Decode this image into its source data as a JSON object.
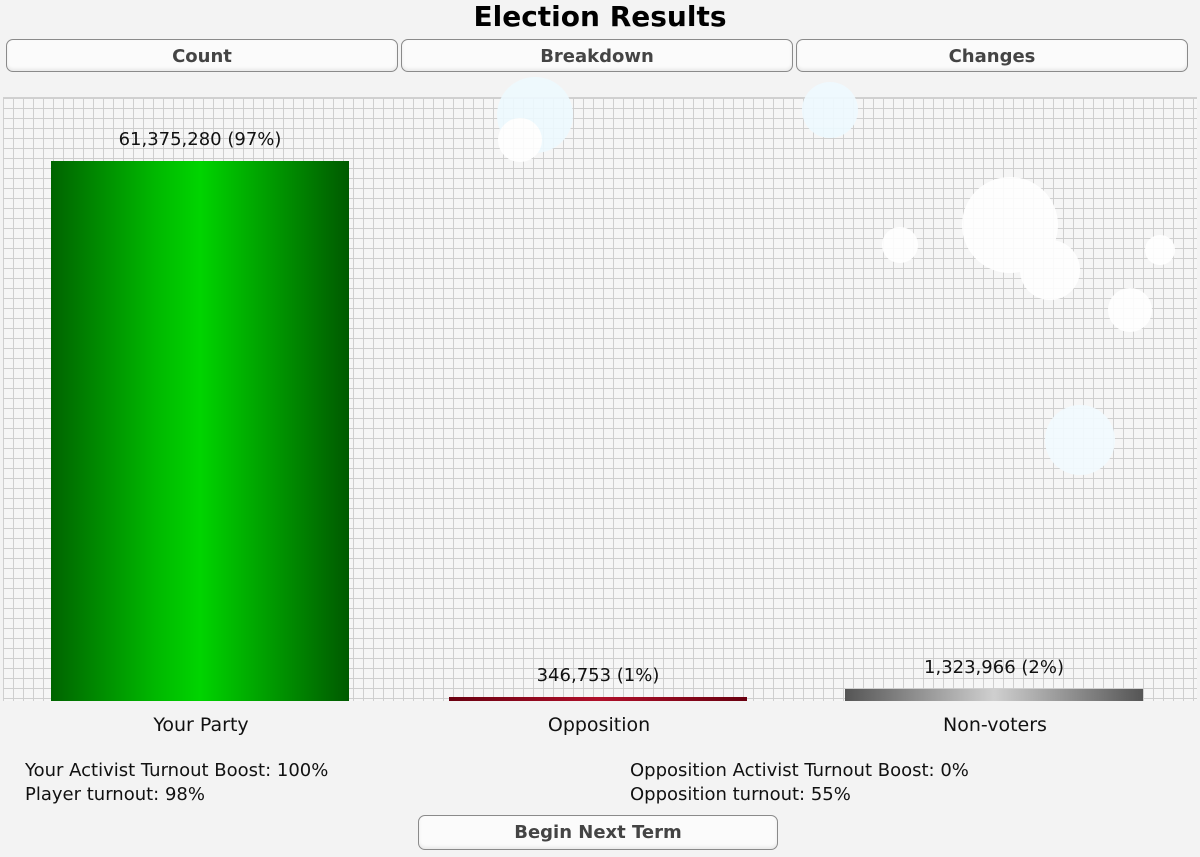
{
  "title": "Election Results",
  "tabs": [
    {
      "label": "Count"
    },
    {
      "label": "Breakdown"
    },
    {
      "label": "Changes"
    }
  ],
  "chart_data": {
    "type": "bar",
    "categories": [
      "Your Party",
      "Opposition",
      "Non-voters"
    ],
    "values": [
      61375280,
      346753,
      1323966
    ],
    "value_labels": [
      "61,375,280 (97%)",
      "346,753 (1%)",
      "1,323,966 (2%)"
    ],
    "colors": [
      "#00c000",
      "#a01020",
      "#9a9a9a"
    ],
    "grid": true
  },
  "stats": {
    "player_boost": "Your Activist Turnout Boost: 100%",
    "player_turnout": "Player turnout: 98%",
    "opposition_boost": "Opposition Activist Turnout Boost: 0%",
    "opposition_turnout": "Opposition turnout: 55%"
  },
  "begin_button": "Begin Next Term"
}
